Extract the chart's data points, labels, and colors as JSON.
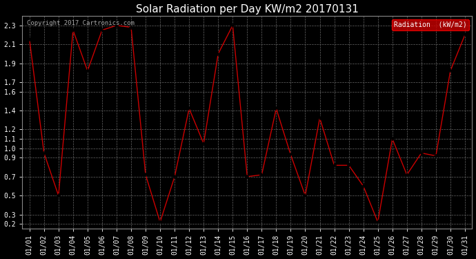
{
  "title": "Solar Radiation per Day KW/m2 20170131",
  "copyright_text": "Copyright 2017 Cartronics.com",
  "legend_label": "Radiation  (kW/m2)",
  "dates": [
    "01/01",
    "01/02",
    "01/03",
    "01/04",
    "01/05",
    "01/06",
    "01/07",
    "01/08",
    "01/09",
    "01/10",
    "01/11",
    "01/12",
    "01/13",
    "01/14",
    "01/15",
    "01/16",
    "01/17",
    "01/18",
    "01/19",
    "01/20",
    "01/21",
    "01/22",
    "01/23",
    "01/24",
    "01/25",
    "01/26",
    "01/27",
    "01/28",
    "01/29",
    "01/30",
    "01/31"
  ],
  "values": [
    2.15,
    0.95,
    0.5,
    2.25,
    1.82,
    2.25,
    2.3,
    2.28,
    0.72,
    0.22,
    0.7,
    1.42,
    1.05,
    2.0,
    2.3,
    0.7,
    0.72,
    1.42,
    0.93,
    0.5,
    1.32,
    0.82,
    0.82,
    0.6,
    0.22,
    1.1,
    0.72,
    0.95,
    0.92,
    1.82,
    2.2
  ],
  "line_color": "#cc0000",
  "marker_color": "#000000",
  "background_color": "#000000",
  "plot_bg_color": "#000000",
  "grid_color": "#666666",
  "text_color": "#ffffff",
  "ylim": [
    0.15,
    2.4
  ],
  "yticks": [
    0.2,
    0.3,
    0.5,
    0.7,
    0.9,
    1.0,
    1.1,
    1.2,
    1.4,
    1.6,
    1.7,
    1.9,
    2.1,
    2.3
  ],
  "title_fontsize": 11,
  "tick_fontsize": 7,
  "legend_bg": "#cc0000",
  "legend_fg": "#ffffff",
  "figwidth": 6.9,
  "figheight": 3.75,
  "dpi": 100
}
